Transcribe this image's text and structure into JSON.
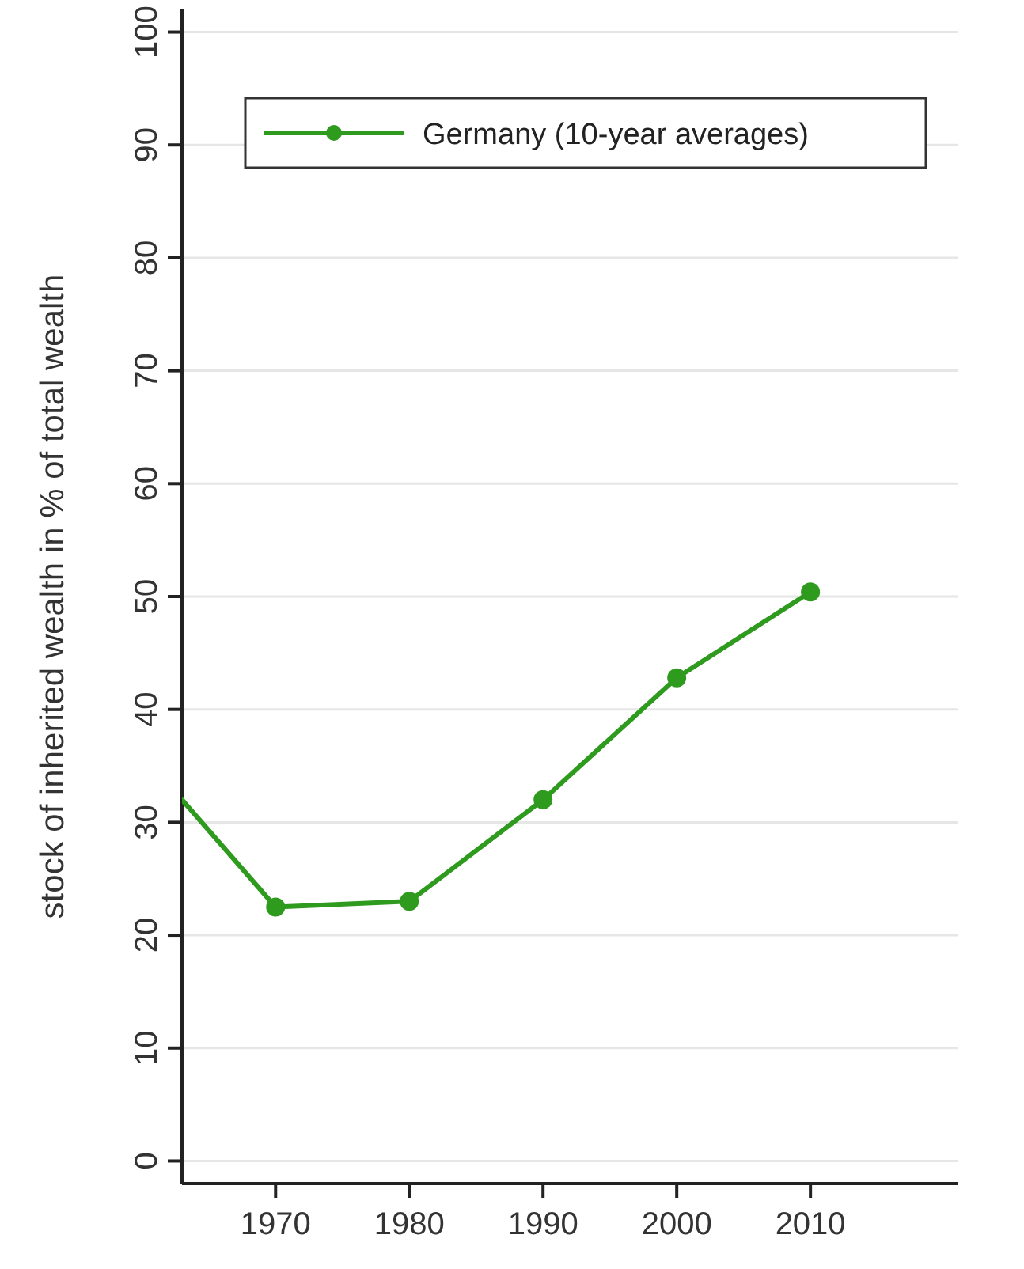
{
  "chart_data": {
    "type": "line",
    "ylabel": "stock of inherited wealth in % of total wealth",
    "xlim": [
      1963,
      2021
    ],
    "xticks": [
      1970,
      1980,
      1990,
      2000,
      2010
    ],
    "ylim": [
      -2,
      102
    ],
    "yticks": [
      0,
      10,
      20,
      30,
      40,
      50,
      60,
      70,
      80,
      90,
      100
    ],
    "grid": "y",
    "legend": "top right",
    "series": [
      {
        "color": "#2e9a1e",
        "x": [
          1963,
          1970
        ],
        "values": [
          32,
          22.5
        ]
      },
      {
        "name": "Germany (10-year averages)",
        "color": "#2e9a1e",
        "x": [
          1970,
          1980,
          1990,
          2000,
          2010
        ],
        "values": [
          22.5,
          23,
          32,
          42.8,
          50.4
        ],
        "marker": "circle"
      }
    ]
  }
}
